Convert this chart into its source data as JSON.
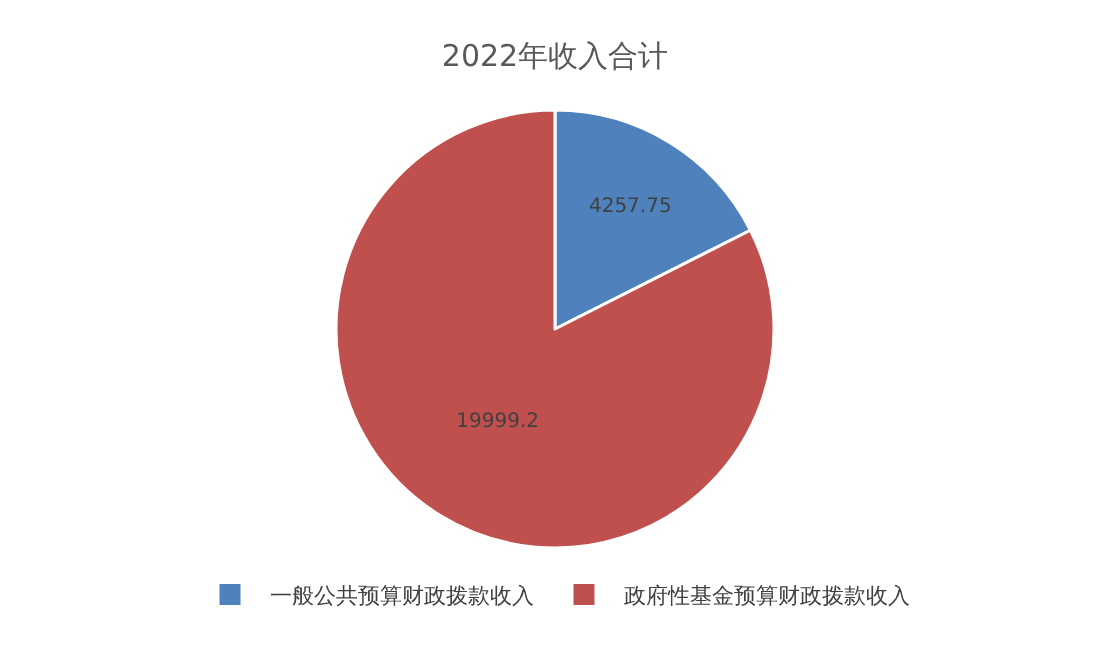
{
  "chart_data": {
    "type": "pie",
    "title": "2022年收入合计",
    "categories": [
      "一般公共预算财政拨款收入",
      "政府性基金预算财政拨款收入"
    ],
    "values": [
      4257.75,
      19999.2
    ],
    "colors": [
      "#4f81bd",
      "#c0504d"
    ],
    "data_labels": true,
    "legend": "bottom"
  }
}
